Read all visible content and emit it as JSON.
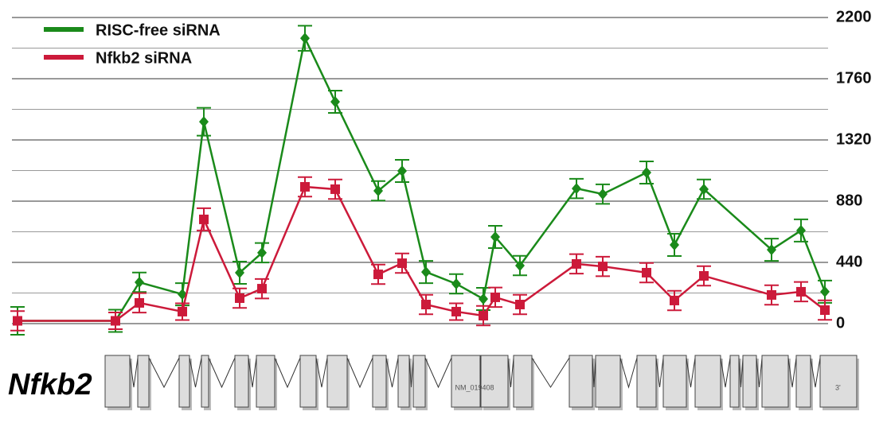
{
  "chart_data": {
    "type": "line",
    "x": [
      22,
      145,
      175,
      229,
      256,
      301,
      329,
      383,
      421,
      475,
      505,
      535,
      573,
      607,
      622,
      653,
      724,
      757,
      812,
      847,
      884,
      969,
      1006,
      1036
    ],
    "xlim": [
      15,
      1040
    ],
    "series": [
      {
        "name": "RISC-free siRNA",
        "color": "#1a8a1a",
        "marker": "diamond",
        "values": [
          20,
          20,
          297,
          211,
          1451,
          366,
          509,
          2051,
          1594,
          954,
          1097,
          371,
          286,
          177,
          623,
          417,
          971,
          931,
          1086,
          566,
          966,
          531,
          669,
          229
        ],
        "errors": [
          100,
          80,
          70,
          80,
          100,
          80,
          70,
          90,
          80,
          70,
          80,
          80,
          70,
          80,
          80,
          70,
          70,
          70,
          80,
          80,
          70,
          80,
          80,
          80
        ]
      },
      {
        "name": "Nfkb2 siRNA",
        "color": "#cc1a3a",
        "marker": "square",
        "values": [
          20,
          20,
          149,
          86,
          749,
          183,
          251,
          983,
          966,
          354,
          434,
          137,
          86,
          57,
          189,
          137,
          429,
          411,
          366,
          166,
          343,
          206,
          229,
          97
        ],
        "errors": [
          70,
          60,
          70,
          60,
          80,
          70,
          70,
          70,
          70,
          70,
          70,
          70,
          60,
          70,
          70,
          70,
          70,
          70,
          70,
          70,
          70,
          70,
          70,
          70
        ]
      }
    ],
    "ylim": [
      0,
      2200
    ],
    "yticks": [
      0,
      440,
      880,
      1320,
      1760,
      2200
    ],
    "minor_yticks": [
      220,
      660,
      1100,
      1540,
      1980
    ],
    "grid": true,
    "legend": "top-left"
  },
  "gene": {
    "name": "Nfkb2",
    "transcript": "NM_019408",
    "end_label": "3'"
  }
}
